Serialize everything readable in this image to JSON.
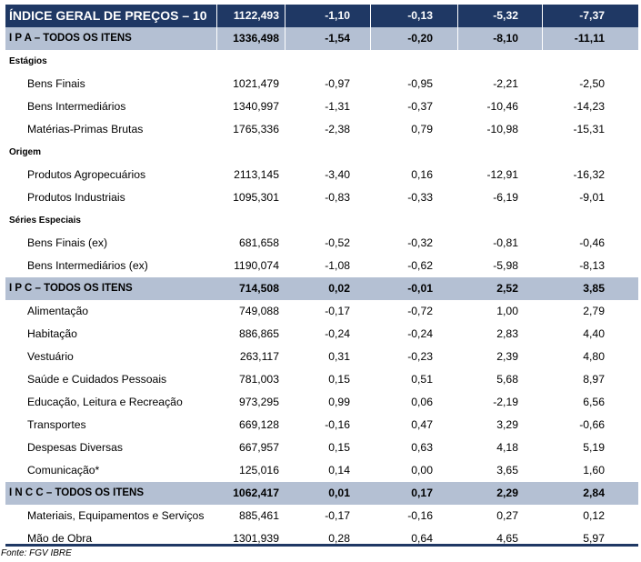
{
  "table": {
    "header": {
      "label": "ÍNDICE GERAL DE PREÇOS – 10",
      "values": [
        "1122,493",
        "-1,10",
        "-0,13",
        "-5,32",
        "-7,37"
      ]
    },
    "rows": [
      {
        "type": "band",
        "label": "I P A – TODOS OS ITENS",
        "values": [
          "1336,498",
          "-1,54",
          "-0,20",
          "-8,10",
          "-11,11"
        ]
      },
      {
        "type": "section",
        "label": "Estágios"
      },
      {
        "type": "item",
        "label": "Bens Finais",
        "values": [
          "1021,479",
          "-0,97",
          "-0,95",
          "-2,21",
          "-2,50"
        ]
      },
      {
        "type": "item",
        "label": "Bens Intermediários",
        "values": [
          "1340,997",
          "-1,31",
          "-0,37",
          "-10,46",
          "-14,23"
        ]
      },
      {
        "type": "item",
        "label": "Matérias-Primas Brutas",
        "values": [
          "1765,336",
          "-2,38",
          "0,79",
          "-10,98",
          "-15,31"
        ]
      },
      {
        "type": "section",
        "label": "Origem"
      },
      {
        "type": "item",
        "label": "Produtos Agropecuários",
        "values": [
          "2113,145",
          "-3,40",
          "0,16",
          "-12,91",
          "-16,32"
        ]
      },
      {
        "type": "item",
        "label": "Produtos Industriais",
        "values": [
          "1095,301",
          "-0,83",
          "-0,33",
          "-6,19",
          "-9,01"
        ]
      },
      {
        "type": "section",
        "label": "Séries Especiais"
      },
      {
        "type": "item",
        "label": "Bens Finais (ex)",
        "values": [
          "681,658",
          "-0,52",
          "-0,32",
          "-0,81",
          "-0,46"
        ]
      },
      {
        "type": "item",
        "label": "Bens Intermediários (ex)",
        "values": [
          "1190,074",
          "-1,08",
          "-0,62",
          "-5,98",
          "-8,13"
        ]
      },
      {
        "type": "band",
        "label": "I P C – TODOS OS ITENS",
        "values": [
          "714,508",
          "0,02",
          "-0,01",
          "2,52",
          "3,85"
        ]
      },
      {
        "type": "item",
        "label": "Alimentação",
        "values": [
          "749,088",
          "-0,17",
          "-0,72",
          "1,00",
          "2,79"
        ]
      },
      {
        "type": "item",
        "label": "Habitação",
        "values": [
          "886,865",
          "-0,24",
          "-0,24",
          "2,83",
          "4,40"
        ]
      },
      {
        "type": "item",
        "label": "Vestuário",
        "values": [
          "263,117",
          "0,31",
          "-0,23",
          "2,39",
          "4,80"
        ]
      },
      {
        "type": "item",
        "label": "Saúde e Cuidados Pessoais",
        "values": [
          "781,003",
          "0,15",
          "0,51",
          "5,68",
          "8,97"
        ]
      },
      {
        "type": "item",
        "label": "Educação, Leitura e Recreação",
        "values": [
          "973,295",
          "0,99",
          "0,06",
          "-2,19",
          "6,56"
        ]
      },
      {
        "type": "item",
        "label": "Transportes",
        "values": [
          "669,128",
          "-0,16",
          "0,47",
          "3,29",
          "-0,66"
        ]
      },
      {
        "type": "item",
        "label": "Despesas Diversas",
        "values": [
          "667,957",
          "0,15",
          "0,63",
          "4,18",
          "5,19"
        ]
      },
      {
        "type": "item",
        "label": "Comunicação*",
        "values": [
          "125,016",
          "0,14",
          "0,00",
          "3,65",
          "1,60"
        ]
      },
      {
        "type": "band",
        "label": "I N C C – TODOS OS ITENS",
        "values": [
          "1062,417",
          "0,01",
          "0,17",
          "2,29",
          "2,84"
        ]
      },
      {
        "type": "item",
        "label": "Materiais, Equipamentos e Serviços",
        "values": [
          "885,461",
          "-0,17",
          "-0,16",
          "0,27",
          "0,12"
        ]
      },
      {
        "type": "item",
        "label": "Mão de Obra",
        "values": [
          "1301,939",
          "0,28",
          "0,64",
          "4,65",
          "5,97"
        ]
      }
    ]
  },
  "source": "Fonte: FGV IBRE",
  "colors": {
    "header_bg": "#1f3864",
    "band_bg": "#b4c0d3"
  }
}
